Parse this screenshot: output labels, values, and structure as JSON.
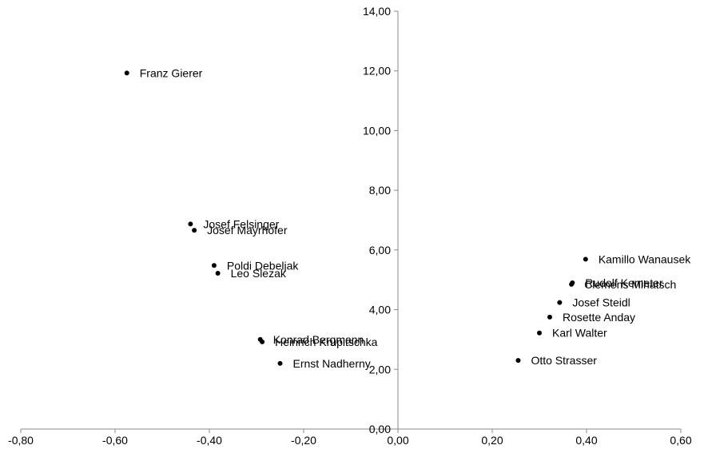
{
  "chart_data": {
    "type": "scatter",
    "title": "",
    "xlabel": "",
    "ylabel": "",
    "xlim": [
      -0.8,
      0.6
    ],
    "ylim": [
      0,
      14
    ],
    "x_ticks": [
      "-0,80",
      "-0,60",
      "-0,40",
      "-0,20",
      "0,00",
      "0,20",
      "0,40",
      "0,60"
    ],
    "y_ticks": [
      "0,00",
      "2,00",
      "4,00",
      "6,00",
      "8,00",
      "10,00",
      "12,00",
      "14,00"
    ],
    "grid": false,
    "marker_color": "#000000",
    "points": [
      {
        "label": "Franz Gierer",
        "x": -0.575,
        "y": 11.93
      },
      {
        "label": "Josef Felsinger",
        "x": -0.44,
        "y": 6.87
      },
      {
        "label": "Josef Mayrhofer",
        "x": -0.432,
        "y": 6.66
      },
      {
        "label": "Poldi Debeljak",
        "x": -0.39,
        "y": 5.48
      },
      {
        "label": "Leo Slezak",
        "x": -0.382,
        "y": 5.22
      },
      {
        "label": "Konrad Bergmann",
        "x": -0.292,
        "y": 3.0
      },
      {
        "label": "Heinrich Krupitschka",
        "x": -0.288,
        "y": 2.92
      },
      {
        "label": "Ernst Nadherny",
        "x": -0.25,
        "y": 2.2
      },
      {
        "label": "Kamillo Wanausek",
        "x": 0.398,
        "y": 5.69
      },
      {
        "label": "Rudolf Kemeter",
        "x": 0.37,
        "y": 4.9
      },
      {
        "label": "Clemens Mihatsch",
        "x": 0.368,
        "y": 4.85
      },
      {
        "label": "Josef Steidl",
        "x": 0.343,
        "y": 4.24
      },
      {
        "label": "Rosette Anday",
        "x": 0.322,
        "y": 3.75
      },
      {
        "label": "Karl Walter",
        "x": 0.3,
        "y": 3.22
      },
      {
        "label": "Otto Strasser",
        "x": 0.255,
        "y": 2.3
      }
    ]
  }
}
